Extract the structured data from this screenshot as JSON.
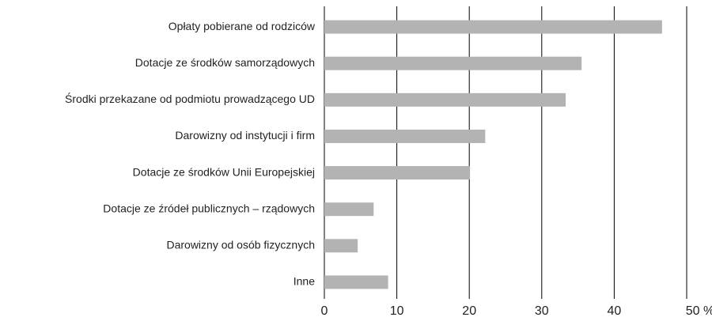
{
  "chart_data": {
    "type": "hbar",
    "categories": [
      "Opłaty pobierane od rodziców",
      "Dotacje ze środków samorządowych",
      "Środki przekazane od podmiotu prowadzącego UD",
      "Darowizny od instytucji i firm",
      "Dotacje ze środków Unii Europejskiej",
      "Dotacje ze źródeł publicznych – rządowych",
      "Darowizny od osób fizycznych",
      "Inne"
    ],
    "values": [
      46.6,
      35.5,
      33.3,
      22.2,
      20.1,
      6.8,
      4.6,
      8.8
    ],
    "color": "#b3b3b3",
    "xlim": [
      0,
      50
    ],
    "xticks": [
      0,
      10,
      20,
      30,
      40,
      {
        "value": 50,
        "label": "50 %"
      }
    ],
    "grid": true
  }
}
